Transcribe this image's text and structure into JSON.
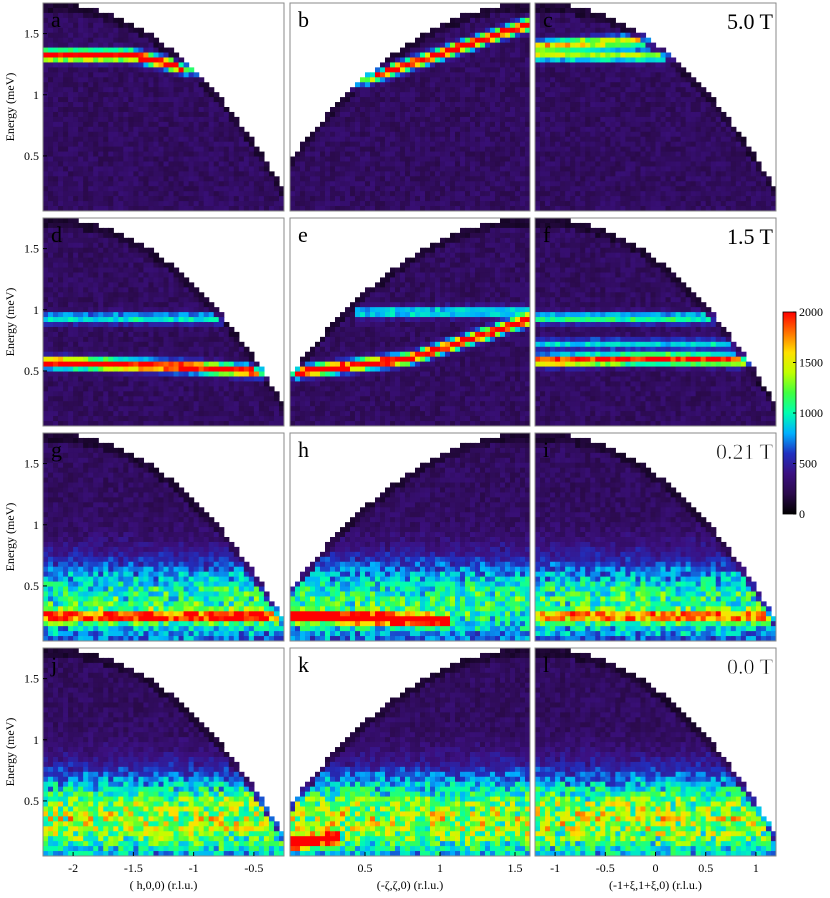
{
  "figure": {
    "colorbar": {
      "min": 0,
      "max": 2000,
      "tick_labels": [
        "2000",
        "1500",
        "1000",
        "500",
        "0"
      ],
      "tick_values": [
        2000,
        1500,
        1000,
        500,
        0
      ],
      "colormap": [
        "#000000",
        "#2a0a4a",
        "#3b1080",
        "#2030c0",
        "#00b0ff",
        "#00ffb0",
        "#40ff40",
        "#c0ff00",
        "#ffe000",
        "#ff7000",
        "#ff0000"
      ]
    },
    "y_axis": {
      "label": "Energy (meV)",
      "tick_labels": [
        "1.5",
        "1",
        "0.5"
      ],
      "tick_values": [
        1.5,
        1,
        0.5
      ],
      "range": [
        0.05,
        1.75
      ]
    },
    "columns": [
      {
        "xlabel": "( h,0,0) (r.l.u.)",
        "range": [
          -2.25,
          -0.25
        ],
        "tick_labels": [
          "-2",
          "-1.5",
          "-1",
          "-0.5"
        ],
        "tick_values": [
          -2,
          -1.5,
          -1,
          -0.5
        ]
      },
      {
        "xlabel": "(-ζ,ζ,0) (r.l.u.)",
        "range": [
          0,
          1.6
        ],
        "tick_labels": [
          "0.5",
          "1",
          "1.5"
        ],
        "tick_values": [
          0.5,
          1,
          1.5
        ]
      },
      {
        "xlabel": "(-1+ξ,1+ξ,0) (r.l.u.)",
        "range": [
          -1.2,
          1.2
        ],
        "tick_labels": [
          "-1",
          "-0.5",
          "0",
          "0.5",
          "1"
        ],
        "tick_values": [
          -1,
          -0.5,
          0,
          0.5,
          1
        ]
      }
    ],
    "rows": [
      {
        "field_label": "5.0 T"
      },
      {
        "field_label": "1.5 T"
      },
      {
        "field_label": "0.21 T"
      },
      {
        "field_label": "0.0 T"
      }
    ]
  },
  "chart_data": {
    "type": "heatmap",
    "title": "",
    "colorbar_range": [
      0,
      2000
    ],
    "panels": [
      {
        "label": "a",
        "row": 0,
        "col": 0,
        "field": "5.0 T",
        "mode": [
          {
            "x": [
              -2.25,
              -1.5,
              -1,
              -0.25
            ],
            "e": [
              1.32,
              1.32,
              1.2,
              1.05
            ],
            "intensity": 2000
          }
        ]
      },
      {
        "label": "b",
        "row": 0,
        "col": 1,
        "field": "5.0 T",
        "mode": [
          {
            "x": [
              0.3,
              0.8,
              1.6
            ],
            "e": [
              1.05,
              1.25,
              1.58
            ],
            "intensity": 2000
          }
        ]
      },
      {
        "label": "c",
        "row": 0,
        "col": 2,
        "field": "5.0 T",
        "mode": [
          {
            "x": [
              -1.2,
              0,
              1.2
            ],
            "e": [
              1.4,
              1.45,
              1.4
            ],
            "intensity": 1300
          },
          {
            "x": [
              -1.2,
              0,
              1.2
            ],
            "e": [
              1.32,
              1.32,
              1.32
            ],
            "intensity": 1100
          }
        ]
      },
      {
        "label": "d",
        "row": 1,
        "col": 0,
        "field": "1.5 T",
        "mode": [
          {
            "x": [
              -2.25,
              -1,
              -0.25
            ],
            "e": [
              0.57,
              0.53,
              0.48
            ],
            "intensity": 2000
          },
          {
            "x": [
              -2.25,
              -0.8
            ],
            "e": [
              0.93,
              0.93
            ],
            "intensity": 700
          }
        ]
      },
      {
        "label": "e",
        "row": 1,
        "col": 1,
        "field": "1.5 T",
        "mode": [
          {
            "x": [
              0,
              0.8,
              1.6
            ],
            "e": [
              0.48,
              0.6,
              0.92
            ],
            "intensity": 2000
          },
          {
            "x": [
              0.5,
              1.6
            ],
            "e": [
              0.98,
              0.98
            ],
            "intensity": 700
          }
        ]
      },
      {
        "label": "f",
        "row": 1,
        "col": 2,
        "field": "1.5 T",
        "mode": [
          {
            "x": [
              -1.2,
              0,
              1.2
            ],
            "e": [
              0.58,
              0.6,
              0.58
            ],
            "intensity": 1800
          },
          {
            "x": [
              -1.2,
              1.2
            ],
            "e": [
              0.93,
              0.93
            ],
            "intensity": 800
          },
          {
            "x": [
              -1.2,
              1.2
            ],
            "e": [
              0.72,
              0.72
            ],
            "intensity": 600
          }
        ]
      },
      {
        "label": "g",
        "row": 2,
        "col": 0,
        "field": "0.21 T",
        "mode": [
          {
            "x": [
              -2.25,
              -0.25
            ],
            "e": [
              0.25,
              0.25
            ],
            "intensity": 1100
          }
        ]
      },
      {
        "label": "h",
        "row": 2,
        "col": 1,
        "field": "0.21 T",
        "mode": [
          {
            "x": [
              0,
              1.0
            ],
            "e": [
              0.25,
              0.22
            ],
            "intensity": 1800
          }
        ]
      },
      {
        "label": "i",
        "row": 2,
        "col": 2,
        "field": "0.21 T",
        "mode": [
          {
            "x": [
              -1.2,
              1.2
            ],
            "e": [
              0.25,
              0.25
            ],
            "intensity": 900
          }
        ]
      },
      {
        "label": "j",
        "row": 3,
        "col": 0,
        "field": "0.0 T",
        "mode": []
      },
      {
        "label": "k",
        "row": 3,
        "col": 1,
        "field": "0.0 T",
        "mode": [
          {
            "x": [
              0,
              0.3
            ],
            "e": [
              0.15,
              0.2
            ],
            "intensity": 1900
          }
        ]
      },
      {
        "label": "l",
        "row": 3,
        "col": 2,
        "field": "0.0 T",
        "mode": []
      }
    ]
  }
}
